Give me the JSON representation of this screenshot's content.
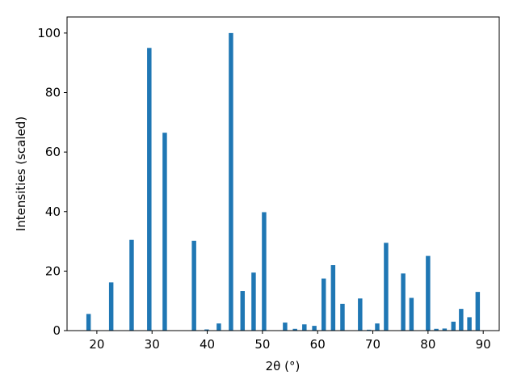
{
  "chart_data": {
    "type": "bar",
    "xlabel": "2θ (°)",
    "ylabel": "Intensities (scaled)",
    "x": [
      18.5,
      22.6,
      26.3,
      29.5,
      32.3,
      37.6,
      39.9,
      42.1,
      44.3,
      46.4,
      48.4,
      50.3,
      54.1,
      55.9,
      57.6,
      59.4,
      61.1,
      62.8,
      64.5,
      67.7,
      69.3,
      70.8,
      72.4,
      75.5,
      77.0,
      80.0,
      81.5,
      83.0,
      84.6,
      86.0,
      87.5,
      89.0
    ],
    "values": [
      5.6,
      16.2,
      30.5,
      95,
      66.5,
      30.2,
      0.4,
      2.4,
      100,
      13.3,
      19.5,
      39.8,
      2.7,
      0.6,
      2.1,
      1.6,
      17.5,
      22,
      9,
      10.8,
      0.3,
      2.4,
      29.5,
      19.2,
      11,
      25.1,
      0.6,
      0.7,
      3,
      7.3,
      4.5,
      13
    ],
    "bar_width": 0.8,
    "color": "#1f77b4",
    "xlim": [
      14.6,
      92.9
    ],
    "xticks": [
      20,
      30,
      40,
      50,
      60,
      70,
      80,
      90
    ],
    "ylim": [
      0,
      105.4
    ],
    "yticks": [
      0,
      20,
      40,
      60,
      80,
      100
    ],
    "grid": false
  }
}
